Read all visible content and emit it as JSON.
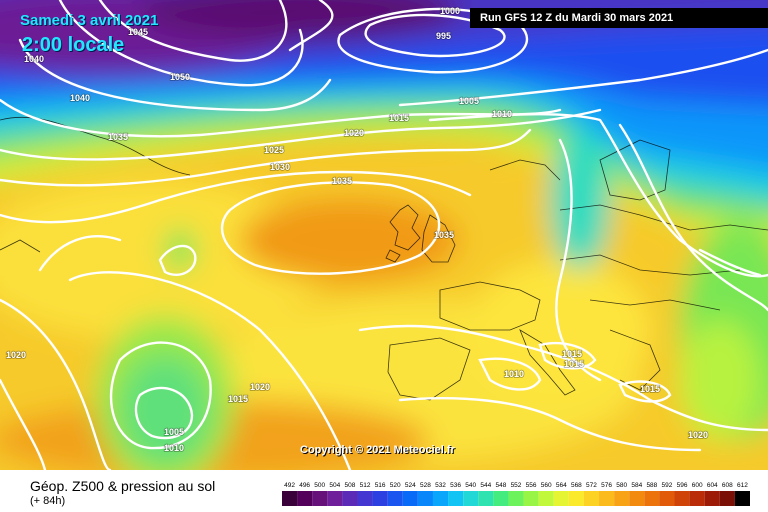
{
  "header": {
    "date": "Samedi 3 avril 2021",
    "local_time": "2:00 locale",
    "run": "Run GFS 12 Z du Mardi 30 mars 2021"
  },
  "map": {
    "copyright": "Copyright © 2021 Meteociel.fr",
    "isobar_labels": [
      "1000",
      "995",
      "1045",
      "1040",
      "1050",
      "1040",
      "1035",
      "1005",
      "1010",
      "1015",
      "1020",
      "1025",
      "1030",
      "1035",
      "1035",
      "1020",
      "1010",
      "1015",
      "1015",
      "1020",
      "1015",
      "1005",
      "1010",
      "1020",
      "1015"
    ]
  },
  "footer": {
    "product": "Géop. Z500 & pression au sol",
    "lead": "(+ 84h)"
  },
  "legend": {
    "values": [
      "492",
      "496",
      "500",
      "504",
      "508",
      "512",
      "516",
      "520",
      "524",
      "528",
      "532",
      "536",
      "540",
      "544",
      "548",
      "552",
      "556",
      "560",
      "564",
      "568",
      "572",
      "576",
      "580",
      "584",
      "588",
      "592",
      "596",
      "600",
      "604",
      "608",
      "612"
    ],
    "colors": [
      "#3a003a",
      "#52005a",
      "#66107a",
      "#701f9a",
      "#5b2bb8",
      "#4436d0",
      "#2c3fe0",
      "#1a55f0",
      "#0a6af8",
      "#0a86fb",
      "#0aa6fb",
      "#11c4f3",
      "#22d8d6",
      "#2fe3b0",
      "#44ec80",
      "#6cf25a",
      "#98f545",
      "#c2f83a",
      "#e6f533",
      "#fbe92c",
      "#fcd324",
      "#fbbb1c",
      "#f8a215",
      "#f38a10",
      "#ec720c",
      "#e05a0a",
      "#cf4208",
      "#b92c07",
      "#9d1b06",
      "#7a1005",
      "#000000"
    ]
  }
}
